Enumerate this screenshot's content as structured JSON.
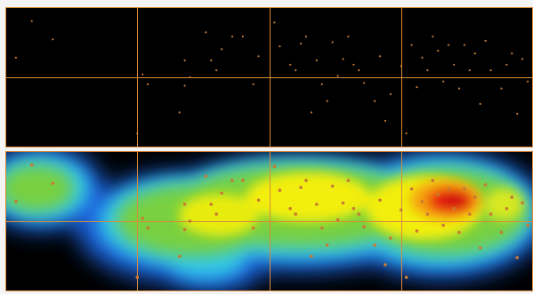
{
  "colors": {
    "background": "#000000",
    "grid": "#d98a3a",
    "point": "#c87a34",
    "heat_low": "#2a4bd6",
    "heat_mid": "#f5f000",
    "heat_high": "#e81010"
  },
  "grid": {
    "cols": 4,
    "rows": 2
  },
  "points": [
    {
      "x": 0.05,
      "y": 0.1
    },
    {
      "x": 0.09,
      "y": 0.23
    },
    {
      "x": 0.26,
      "y": 0.48
    },
    {
      "x": 0.27,
      "y": 0.55
    },
    {
      "x": 0.25,
      "y": 0.9
    },
    {
      "x": 0.33,
      "y": 0.75
    },
    {
      "x": 0.34,
      "y": 0.56
    },
    {
      "x": 0.35,
      "y": 0.5
    },
    {
      "x": 0.34,
      "y": 0.38
    },
    {
      "x": 0.38,
      "y": 0.18
    },
    {
      "x": 0.39,
      "y": 0.38
    },
    {
      "x": 0.4,
      "y": 0.45
    },
    {
      "x": 0.41,
      "y": 0.3
    },
    {
      "x": 0.43,
      "y": 0.21
    },
    {
      "x": 0.45,
      "y": 0.21
    },
    {
      "x": 0.47,
      "y": 0.55
    },
    {
      "x": 0.48,
      "y": 0.35
    },
    {
      "x": 0.51,
      "y": 0.11
    },
    {
      "x": 0.52,
      "y": 0.28
    },
    {
      "x": 0.54,
      "y": 0.41
    },
    {
      "x": 0.55,
      "y": 0.45
    },
    {
      "x": 0.56,
      "y": 0.26
    },
    {
      "x": 0.57,
      "y": 0.21
    },
    {
      "x": 0.58,
      "y": 0.75
    },
    {
      "x": 0.59,
      "y": 0.38
    },
    {
      "x": 0.6,
      "y": 0.55
    },
    {
      "x": 0.61,
      "y": 0.67
    },
    {
      "x": 0.62,
      "y": 0.25
    },
    {
      "x": 0.63,
      "y": 0.49
    },
    {
      "x": 0.64,
      "y": 0.37
    },
    {
      "x": 0.65,
      "y": 0.21
    },
    {
      "x": 0.66,
      "y": 0.41
    },
    {
      "x": 0.67,
      "y": 0.45
    },
    {
      "x": 0.68,
      "y": 0.54
    },
    {
      "x": 0.7,
      "y": 0.67
    },
    {
      "x": 0.71,
      "y": 0.35
    },
    {
      "x": 0.72,
      "y": 0.81
    },
    {
      "x": 0.73,
      "y": 0.62
    },
    {
      "x": 0.75,
      "y": 0.42
    },
    {
      "x": 0.76,
      "y": 0.9
    },
    {
      "x": 0.77,
      "y": 0.27
    },
    {
      "x": 0.78,
      "y": 0.57
    },
    {
      "x": 0.79,
      "y": 0.36
    },
    {
      "x": 0.8,
      "y": 0.45
    },
    {
      "x": 0.81,
      "y": 0.21
    },
    {
      "x": 0.82,
      "y": 0.31
    },
    {
      "x": 0.83,
      "y": 0.53
    },
    {
      "x": 0.84,
      "y": 0.27
    },
    {
      "x": 0.85,
      "y": 0.41
    },
    {
      "x": 0.86,
      "y": 0.58
    },
    {
      "x": 0.87,
      "y": 0.27
    },
    {
      "x": 0.88,
      "y": 0.45
    },
    {
      "x": 0.89,
      "y": 0.33
    },
    {
      "x": 0.9,
      "y": 0.69
    },
    {
      "x": 0.91,
      "y": 0.24
    },
    {
      "x": 0.92,
      "y": 0.45
    },
    {
      "x": 0.94,
      "y": 0.58
    },
    {
      "x": 0.95,
      "y": 0.41
    },
    {
      "x": 0.96,
      "y": 0.33
    },
    {
      "x": 0.97,
      "y": 0.76
    },
    {
      "x": 0.98,
      "y": 0.37
    },
    {
      "x": 0.99,
      "y": 0.53
    },
    {
      "x": 0.02,
      "y": 0.36
    }
  ]
}
